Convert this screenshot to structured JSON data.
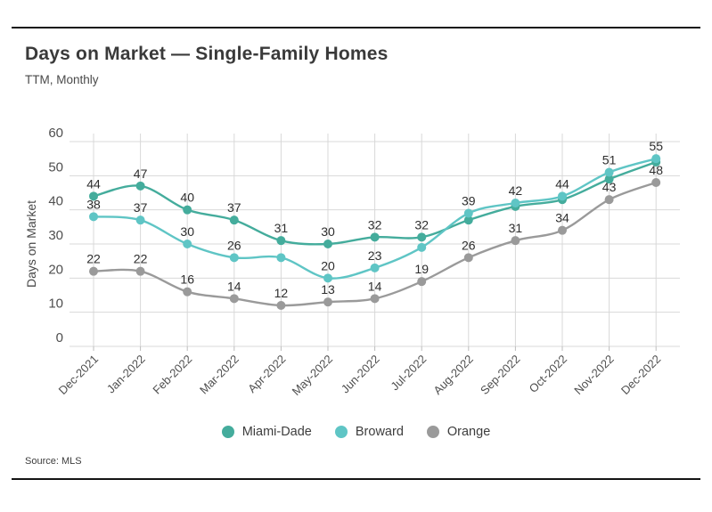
{
  "header": {
    "title": "Days on Market — Single-Family Homes",
    "subtitle": "TTM, Monthly"
  },
  "source": "Source: MLS",
  "legend": [
    {
      "label": "Miami-Dade",
      "color": "#44ac9c"
    },
    {
      "label": "Broward",
      "color": "#5fc5c5"
    },
    {
      "label": "Orange",
      "color": "#9a9a9a"
    }
  ],
  "chart_data": {
    "type": "line",
    "title": "Days on Market — Single-Family Homes",
    "subtitle": "TTM, Monthly",
    "xlabel": "",
    "ylabel": "Days on Market",
    "ylim": [
      0,
      60
    ],
    "ytick_step": 10,
    "grid": true,
    "legend_position": "bottom",
    "categories": [
      "Dec-2021",
      "Jan-2022",
      "Feb-2022",
      "Mar-2022",
      "Apr-2022",
      "May-2022",
      "Jun-2022",
      "Jul-2022",
      "Aug-2022",
      "Sep-2022",
      "Oct-2022",
      "Nov-2022",
      "Dec-2022"
    ],
    "series": [
      {
        "name": "Miami-Dade",
        "color": "#44ac9c",
        "values": [
          44,
          47,
          40,
          37,
          31,
          30,
          32,
          32,
          37,
          41,
          43,
          49,
          54
        ],
        "label_visible": [
          true,
          true,
          true,
          true,
          true,
          true,
          true,
          true,
          false,
          false,
          false,
          false,
          false
        ]
      },
      {
        "name": "Broward",
        "color": "#5fc5c5",
        "values": [
          38,
          37,
          30,
          26,
          26,
          20,
          23,
          29,
          39,
          42,
          44,
          51,
          55
        ],
        "label_visible": [
          true,
          true,
          true,
          true,
          false,
          true,
          true,
          false,
          true,
          true,
          true,
          true,
          true
        ]
      },
      {
        "name": "Orange",
        "color": "#9a9a9a",
        "values": [
          22,
          22,
          16,
          14,
          12,
          13,
          14,
          19,
          26,
          31,
          34,
          43,
          48
        ],
        "label_visible": [
          true,
          true,
          true,
          true,
          true,
          true,
          true,
          true,
          true,
          true,
          true,
          true,
          true
        ]
      }
    ]
  },
  "colors": {
    "grid": "#d8d8d8",
    "tick": "#bdbdbd",
    "axis_text": "#4f4f4f",
    "point_label": "#2d2d2d"
  }
}
